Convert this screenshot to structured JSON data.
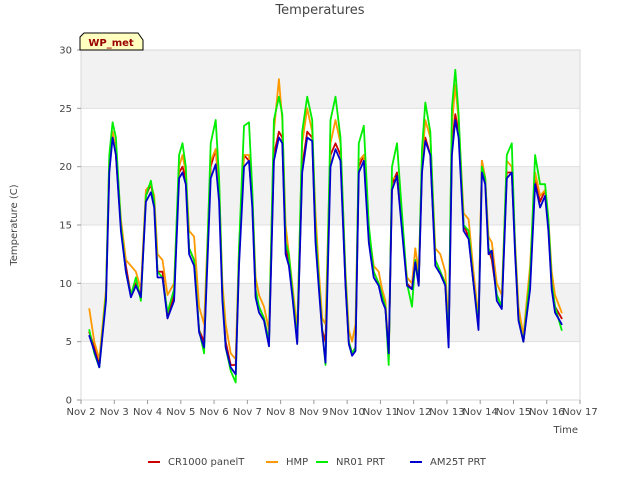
{
  "chart_data": {
    "type": "line",
    "title": "Temperatures",
    "xlabel": "Time",
    "ylabel": "Temperature (C)",
    "ylim": [
      0,
      30
    ],
    "xlim": [
      0,
      15
    ],
    "yticks": [
      0,
      5,
      10,
      15,
      20,
      25,
      30
    ],
    "xtick_labels": [
      "Nov 2",
      "Nov 3",
      "Nov 4",
      "Nov 5",
      "Nov 6",
      "Nov 7",
      "Nov 8",
      "Nov 9",
      "Nov 10",
      "Nov 11",
      "Nov 12",
      "Nov 13",
      "Nov 14",
      "Nov 15",
      "Nov 16",
      "Nov 17"
    ],
    "x_unit": "days since Nov 2 00:00",
    "station_badge": "WP_met",
    "legend_position": "bottom-center",
    "background_bands": "alternating light-gray horizontal bands",
    "series": [
      {
        "name": "CR1000 panelT",
        "color": "#cc0000",
        "x": [
          0.25,
          0.4,
          0.55,
          0.75,
          0.85,
          0.95,
          1.05,
          1.2,
          1.35,
          1.5,
          1.65,
          1.8,
          1.95,
          2.1,
          2.2,
          2.3,
          2.45,
          2.6,
          2.8,
          2.95,
          3.05,
          3.15,
          3.25,
          3.4,
          3.55,
          3.7,
          3.9,
          4.05,
          4.15,
          4.25,
          4.35,
          4.5,
          4.65,
          4.75,
          4.9,
          5.05,
          5.15,
          5.25,
          5.35,
          5.5,
          5.65,
          5.8,
          5.95,
          6.05,
          6.15,
          6.25,
          6.35,
          6.5,
          6.65,
          6.8,
          6.95,
          7.05,
          7.15,
          7.25,
          7.35,
          7.5,
          7.65,
          7.8,
          7.95,
          8.05,
          8.15,
          8.25,
          8.35,
          8.5,
          8.65,
          8.8,
          8.95,
          9.05,
          9.15,
          9.25,
          9.35,
          9.5,
          9.65,
          9.8,
          9.95,
          10.05,
          10.15,
          10.25,
          10.35,
          10.5,
          10.65,
          10.8,
          10.95,
          11.05,
          11.15,
          11.25,
          11.35,
          11.5,
          11.65,
          11.8,
          11.95,
          12.05,
          12.15,
          12.25,
          12.35,
          12.5,
          12.65,
          12.8,
          12.95,
          13.05,
          13.15,
          13.3,
          13.5,
          13.65,
          13.8,
          13.95,
          14.05,
          14.15,
          14.25,
          14.45
        ],
        "values": [
          5.8,
          4.5,
          3.0,
          9.0,
          20.0,
          23.0,
          21.0,
          15.0,
          11.5,
          9.0,
          10.0,
          9.0,
          17.5,
          18.5,
          17.0,
          11.0,
          11.0,
          7.0,
          9.0,
          19.5,
          20.0,
          19.0,
          13.0,
          12.0,
          6.0,
          5.0,
          20.0,
          21.5,
          18.0,
          9.0,
          5.0,
          3.0,
          3.0,
          12.0,
          21.0,
          20.5,
          17.0,
          9.0,
          8.0,
          7.0,
          5.0,
          21.0,
          23.0,
          22.5,
          13.0,
          12.0,
          9.5,
          5.0,
          20.0,
          23.0,
          22.5,
          14.0,
          10.0,
          6.0,
          5.0,
          21.0,
          22.0,
          21.0,
          10.0,
          5.0,
          4.0,
          4.5,
          20.0,
          21.0,
          14.0,
          11.0,
          10.0,
          9.0,
          8.0,
          3.5,
          18.5,
          19.5,
          15.0,
          10.0,
          9.5,
          12.0,
          10.0,
          20.0,
          22.5,
          21.0,
          12.0,
          11.0,
          10.0,
          5.0,
          22.0,
          24.5,
          23.0,
          15.0,
          14.0,
          10.0,
          6.5,
          20.5,
          19.0,
          13.0,
          12.0,
          9.0,
          8.0,
          19.5,
          19.5,
          13.0,
          7.0,
          5.0,
          10.0,
          19.0,
          17.0,
          18.0,
          15.0,
          10.0,
          8.0,
          7.0
        ]
      },
      {
        "name": "HMP",
        "color": "#ff9900",
        "x": [
          0.25,
          0.4,
          0.55,
          0.75,
          0.85,
          0.95,
          1.05,
          1.2,
          1.35,
          1.5,
          1.65,
          1.8,
          1.95,
          2.1,
          2.2,
          2.3,
          2.45,
          2.6,
          2.8,
          2.95,
          3.05,
          3.15,
          3.25,
          3.4,
          3.55,
          3.7,
          3.9,
          4.05,
          4.15,
          4.25,
          4.35,
          4.5,
          4.65,
          4.75,
          4.9,
          5.05,
          5.15,
          5.25,
          5.35,
          5.5,
          5.65,
          5.8,
          5.95,
          6.05,
          6.15,
          6.25,
          6.35,
          6.5,
          6.65,
          6.8,
          6.95,
          7.05,
          7.15,
          7.25,
          7.35,
          7.5,
          7.65,
          7.8,
          7.95,
          8.05,
          8.15,
          8.25,
          8.35,
          8.5,
          8.65,
          8.8,
          8.95,
          9.05,
          9.15,
          9.25,
          9.35,
          9.5,
          9.65,
          9.8,
          9.95,
          10.05,
          10.15,
          10.25,
          10.35,
          10.5,
          10.65,
          10.8,
          10.95,
          11.05,
          11.15,
          11.25,
          11.35,
          11.5,
          11.65,
          11.8,
          11.95,
          12.05,
          12.15,
          12.25,
          12.35,
          12.5,
          12.65,
          12.8,
          12.95,
          13.05,
          13.15,
          13.3,
          13.5,
          13.65,
          13.8,
          13.95,
          14.05,
          14.15,
          14.25,
          14.45
        ],
        "values": [
          7.8,
          5.0,
          3.5,
          9.5,
          20.5,
          23.0,
          21.5,
          15.5,
          12.0,
          11.5,
          11.0,
          9.5,
          18.0,
          18.5,
          17.5,
          12.5,
          12.0,
          9.0,
          10.0,
          20.0,
          21.0,
          19.5,
          14.5,
          14.0,
          8.0,
          6.5,
          20.5,
          21.5,
          18.5,
          10.0,
          6.5,
          4.0,
          3.5,
          13.0,
          21.0,
          21.0,
          17.5,
          10.5,
          9.0,
          8.0,
          6.0,
          23.0,
          27.5,
          24.0,
          15.0,
          12.5,
          10.0,
          6.0,
          22.0,
          25.0,
          23.0,
          16.0,
          11.0,
          7.0,
          6.5,
          22.0,
          24.0,
          22.0,
          11.0,
          6.0,
          5.0,
          6.5,
          20.5,
          21.0,
          14.5,
          11.5,
          11.0,
          9.5,
          8.5,
          4.0,
          19.0,
          19.0,
          15.0,
          10.5,
          10.0,
          13.0,
          11.0,
          20.5,
          24.0,
          22.5,
          13.0,
          12.5,
          11.0,
          6.0,
          23.5,
          27.0,
          24.0,
          16.0,
          15.5,
          11.0,
          7.0,
          20.5,
          19.0,
          14.0,
          13.5,
          10.0,
          9.0,
          20.5,
          20.0,
          13.5,
          8.0,
          5.5,
          11.5,
          19.5,
          17.5,
          18.0,
          15.5,
          11.0,
          9.0,
          7.5
        ]
      },
      {
        "name": "NR01 PRT",
        "color": "#00ee00",
        "x": [
          0.25,
          0.4,
          0.55,
          0.75,
          0.85,
          0.95,
          1.05,
          1.2,
          1.35,
          1.5,
          1.65,
          1.8,
          1.95,
          2.1,
          2.2,
          2.3,
          2.45,
          2.6,
          2.8,
          2.95,
          3.05,
          3.15,
          3.25,
          3.4,
          3.55,
          3.7,
          3.9,
          4.05,
          4.15,
          4.25,
          4.35,
          4.5,
          4.65,
          4.75,
          4.9,
          5.05,
          5.15,
          5.25,
          5.35,
          5.5,
          5.65,
          5.8,
          5.95,
          6.05,
          6.15,
          6.25,
          6.35,
          6.5,
          6.65,
          6.8,
          6.95,
          7.05,
          7.15,
          7.25,
          7.35,
          7.5,
          7.65,
          7.8,
          7.95,
          8.05,
          8.15,
          8.25,
          8.35,
          8.5,
          8.65,
          8.8,
          8.95,
          9.05,
          9.15,
          9.25,
          9.35,
          9.5,
          9.65,
          9.8,
          9.95,
          10.05,
          10.15,
          10.25,
          10.35,
          10.5,
          10.65,
          10.8,
          10.95,
          11.05,
          11.15,
          11.25,
          11.35,
          11.5,
          11.65,
          11.8,
          11.95,
          12.05,
          12.15,
          12.25,
          12.35,
          12.5,
          12.65,
          12.8,
          12.95,
          13.05,
          13.15,
          13.3,
          13.5,
          13.65,
          13.8,
          13.95,
          14.05,
          14.15,
          14.25,
          14.45
        ],
        "values": [
          6.0,
          4.0,
          2.8,
          9.0,
          21.0,
          23.8,
          22.5,
          15.0,
          11.0,
          9.0,
          10.5,
          8.5,
          17.5,
          18.8,
          17.0,
          11.0,
          10.5,
          7.5,
          9.5,
          21.0,
          22.0,
          20.0,
          13.0,
          12.0,
          6.0,
          4.0,
          22.0,
          24.0,
          19.0,
          9.0,
          4.5,
          2.5,
          1.5,
          13.0,
          23.5,
          23.8,
          18.0,
          9.5,
          8.0,
          7.0,
          5.0,
          24.0,
          26.0,
          24.5,
          13.5,
          12.5,
          9.5,
          5.0,
          23.0,
          26.0,
          24.0,
          14.5,
          10.0,
          6.0,
          3.0,
          24.0,
          26.0,
          22.5,
          10.5,
          5.0,
          4.0,
          4.5,
          22.0,
          23.5,
          15.0,
          11.0,
          10.0,
          9.0,
          8.0,
          3.0,
          20.0,
          22.0,
          16.0,
          10.0,
          8.0,
          12.0,
          10.0,
          21.5,
          25.5,
          23.0,
          12.0,
          11.0,
          10.0,
          5.0,
          25.0,
          28.3,
          24.5,
          15.0,
          14.5,
          10.0,
          6.5,
          20.0,
          19.0,
          13.0,
          12.5,
          9.0,
          8.0,
          21.0,
          22.0,
          13.0,
          7.0,
          5.0,
          10.5,
          21.0,
          18.5,
          18.5,
          15.5,
          10.0,
          8.0,
          6.0
        ]
      },
      {
        "name": "AM25T PRT",
        "color": "#0000cc",
        "x": [
          0.25,
          0.4,
          0.55,
          0.75,
          0.85,
          0.95,
          1.05,
          1.2,
          1.35,
          1.5,
          1.65,
          1.8,
          1.95,
          2.1,
          2.2,
          2.3,
          2.45,
          2.6,
          2.8,
          2.95,
          3.05,
          3.15,
          3.25,
          3.4,
          3.55,
          3.7,
          3.9,
          4.05,
          4.15,
          4.25,
          4.35,
          4.5,
          4.65,
          4.75,
          4.9,
          5.05,
          5.15,
          5.25,
          5.35,
          5.5,
          5.65,
          5.8,
          5.95,
          6.05,
          6.15,
          6.25,
          6.35,
          6.5,
          6.65,
          6.8,
          6.95,
          7.05,
          7.15,
          7.25,
          7.35,
          7.5,
          7.65,
          7.8,
          7.95,
          8.05,
          8.15,
          8.25,
          8.35,
          8.5,
          8.65,
          8.8,
          8.95,
          9.05,
          9.15,
          9.25,
          9.35,
          9.5,
          9.65,
          9.8,
          9.95,
          10.05,
          10.15,
          10.25,
          10.35,
          10.5,
          10.65,
          10.8,
          10.95,
          11.05,
          11.15,
          11.25,
          11.35,
          11.5,
          11.65,
          11.8,
          11.95,
          12.05,
          12.15,
          12.25,
          12.35,
          12.5,
          12.65,
          12.8,
          12.95,
          13.05,
          13.15,
          13.3,
          13.5,
          13.65,
          13.8,
          13.95,
          14.05,
          14.15,
          14.25,
          14.45
        ],
        "values": [
          5.5,
          4.2,
          2.8,
          8.5,
          19.5,
          22.5,
          21.0,
          14.5,
          11.0,
          8.8,
          9.8,
          8.8,
          17.0,
          17.8,
          16.5,
          10.5,
          10.5,
          7.0,
          8.5,
          19.0,
          19.5,
          18.5,
          12.5,
          11.5,
          5.8,
          4.5,
          19.0,
          20.2,
          17.0,
          8.5,
          4.5,
          2.8,
          2.2,
          11.5,
          20.0,
          20.5,
          16.5,
          8.8,
          7.5,
          6.8,
          4.6,
          20.5,
          22.5,
          22.0,
          12.5,
          11.5,
          9.0,
          4.8,
          19.5,
          22.5,
          22.2,
          13.5,
          9.5,
          5.8,
          3.2,
          20.0,
          21.5,
          20.5,
          9.8,
          4.8,
          3.8,
          4.2,
          19.5,
          20.5,
          13.5,
          10.5,
          9.8,
          8.5,
          7.8,
          4.0,
          18.0,
          19.2,
          14.5,
          9.8,
          9.5,
          11.8,
          9.8,
          19.5,
          22.2,
          21.0,
          11.5,
          10.8,
          9.8,
          4.5,
          21.0,
          24.0,
          22.5,
          14.5,
          13.8,
          10.0,
          6.0,
          19.5,
          18.5,
          12.5,
          12.8,
          8.5,
          7.8,
          19.0,
          19.5,
          12.5,
          6.8,
          5.0,
          9.5,
          18.5,
          16.5,
          17.5,
          14.5,
          9.5,
          7.5,
          6.5
        ]
      }
    ]
  }
}
